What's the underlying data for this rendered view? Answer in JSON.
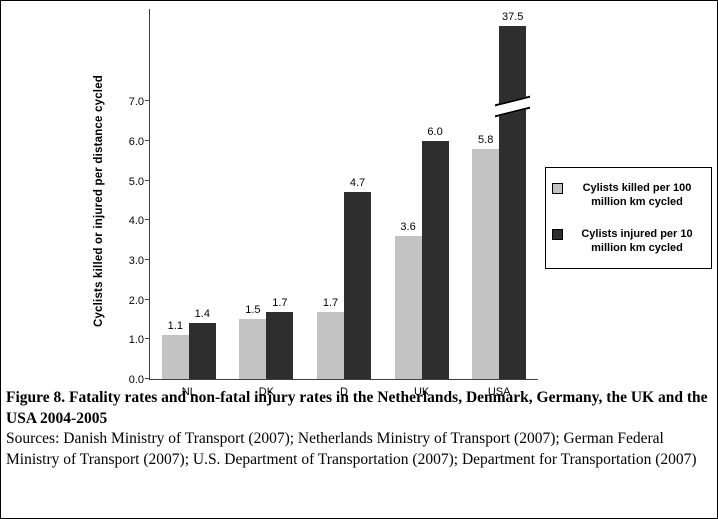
{
  "figure": {
    "caption_title": "Figure 8. Fatality rates and non-fatal injury rates in the Netherlands,  Denmark, Germany, the UK and the USA 2004-2005",
    "caption_sources": "Sources: Danish Ministry of Transport (2007); Netherlands Ministry of Transport (2007); German Federal Ministry of Transport (2007); U.S. Department of Transportation (2007); Department for Transportation (2007)"
  },
  "chart_data": {
    "type": "bar",
    "categories": [
      "NL",
      "DK",
      "D",
      "UK",
      "USA"
    ],
    "series": [
      {
        "name": "Cylists killed per 100 million km cycled",
        "color": "#c3c3c3",
        "values": [
          1.1,
          1.5,
          1.7,
          3.6,
          5.8
        ]
      },
      {
        "name": "Cylists injured per 10 million km cycled",
        "color": "#2e2e2e",
        "values": [
          1.4,
          1.7,
          4.7,
          6.0,
          37.5
        ]
      }
    ],
    "title": "",
    "xlabel": "",
    "ylabel": "Cyclists killed or injured per distance cycled",
    "y_ticks": [
      "0.0",
      "1.0",
      "2.0",
      "3.0",
      "4.0",
      "5.0",
      "6.0",
      "7.0"
    ],
    "ylim": [
      0,
      7.0
    ],
    "axis_break": {
      "series": "Cylists injured per 10 million km cycled",
      "category": "USA",
      "value": 37.5
    },
    "legend_position": "right",
    "grid": false
  }
}
